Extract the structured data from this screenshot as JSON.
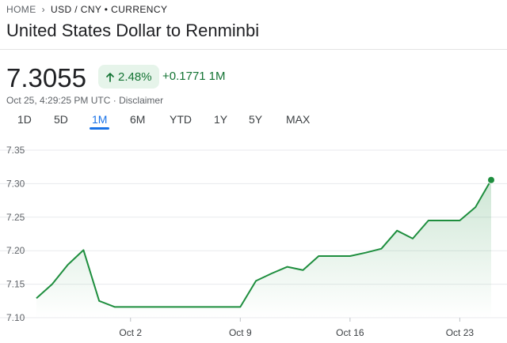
{
  "breadcrumb": {
    "home": "HOME",
    "current": "USD / CNY • CURRENCY"
  },
  "title": "United States Dollar to Renminbi",
  "quote": {
    "price": "7.3055",
    "percent_change": "2.48%",
    "abs_change": "+0.1771",
    "period": "1M",
    "timestamp": "Oct 25, 4:29:25 PM UTC",
    "separator": "·",
    "disclaimer": "Disclaimer"
  },
  "icons": {
    "chevron": "chevron-right-icon",
    "arrow": "arrow-up-icon"
  },
  "tabs": [
    {
      "label": "1D",
      "active": false
    },
    {
      "label": "5D",
      "active": false
    },
    {
      "label": "1M",
      "active": true
    },
    {
      "label": "6M",
      "active": false
    },
    {
      "label": "YTD",
      "active": false
    },
    {
      "label": "1Y",
      "active": false
    },
    {
      "label": "5Y",
      "active": false
    },
    {
      "label": "MAX",
      "active": false
    }
  ],
  "colors": {
    "up": "#137333",
    "line": "#1e8e3e",
    "accent": "#1a73e8",
    "badge_bg": "#e6f4ea"
  },
  "chart_data": {
    "type": "area",
    "ylim": [
      7.1,
      7.35
    ],
    "yticks": [
      "7.35",
      "7.30",
      "7.25",
      "7.20",
      "7.15",
      "7.10"
    ],
    "ytick_values": [
      7.35,
      7.3,
      7.25,
      7.2,
      7.15,
      7.1
    ],
    "xtick_labels": [
      "Oct 2",
      "Oct 9",
      "Oct 16",
      "Oct 23"
    ],
    "xtick_index": [
      6,
      13,
      20,
      27
    ],
    "grid": true,
    "series": [
      {
        "values": [
          7.129,
          7.15,
          7.179,
          7.201,
          7.125,
          7.116,
          7.116,
          7.116,
          7.116,
          7.116,
          7.116,
          7.116,
          7.116,
          7.116,
          7.155,
          7.166,
          7.176,
          7.171,
          7.192,
          7.192,
          7.192,
          7.197,
          7.203,
          7.23,
          7.218,
          7.245,
          7.245,
          7.245,
          7.265,
          7.3055
        ]
      }
    ]
  }
}
